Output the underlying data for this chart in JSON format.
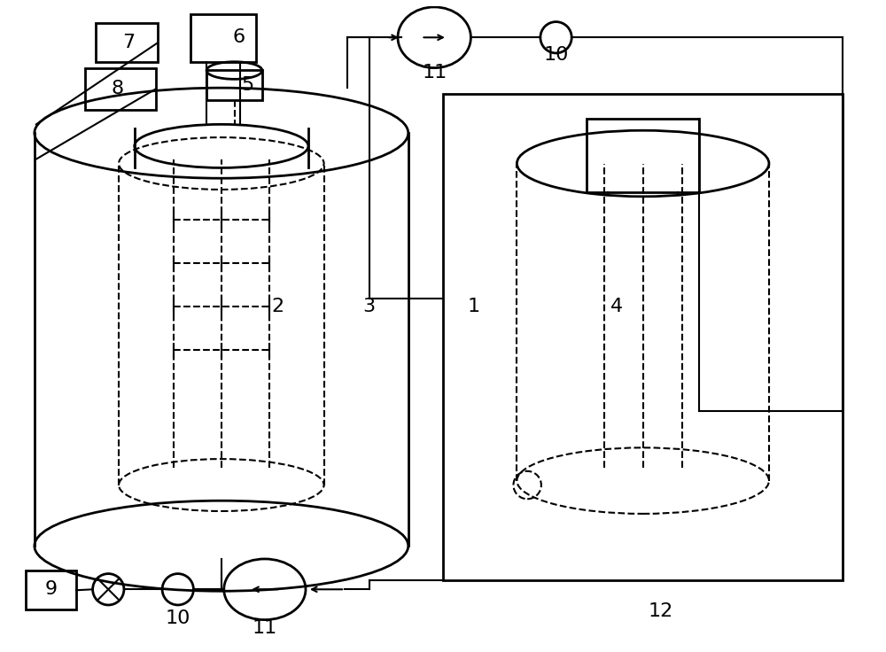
{
  "bg_color": "#ffffff",
  "line_color": "#000000",
  "lw_main": 2.0,
  "lw_thin": 1.5,
  "lw_dashed": 1.5
}
